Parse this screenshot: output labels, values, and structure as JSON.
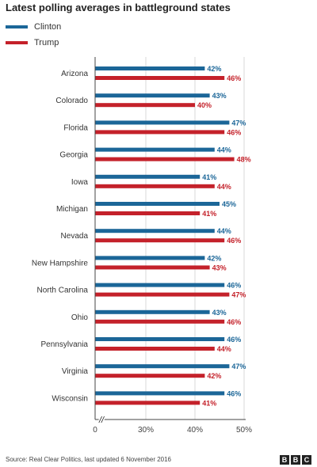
{
  "title": "Latest polling averages in battleground states",
  "colors": {
    "clinton": "#1b6698",
    "trump": "#c4212a",
    "axis": "#444444"
  },
  "source": "Source: Real Clear Politics, last updated 6 November 2016",
  "logo": [
    "B",
    "B",
    "C"
  ],
  "chart_data": {
    "type": "bar",
    "orientation": "horizontal",
    "categories": [
      "Arizona",
      "Colorado",
      "Florida",
      "Georgia",
      "Iowa",
      "Michigan",
      "Nevada",
      "New Hampshire",
      "North Carolina",
      "Ohio",
      "Pennsylvania",
      "Virginia",
      "Wisconsin"
    ],
    "series": [
      {
        "name": "Clinton",
        "values": [
          42,
          43,
          47,
          44,
          41,
          45,
          44,
          42,
          46,
          43,
          46,
          47,
          46
        ],
        "labels": [
          "42%",
          "43%",
          "47%",
          "44%",
          "41%",
          "45%",
          "44%",
          "42%",
          "46%",
          "43%",
          "46%",
          "47%",
          "46%"
        ]
      },
      {
        "name": "Trump",
        "values": [
          46,
          40,
          46,
          48,
          44,
          41,
          46,
          43,
          47,
          46,
          44,
          42,
          41
        ],
        "labels": [
          "46%",
          "40%",
          "46%",
          "48%",
          "44%",
          "41%",
          "46%",
          "43%",
          "47%",
          "46%",
          "44%",
          "42%",
          "41%"
        ]
      }
    ],
    "xticks": [
      0,
      30,
      40,
      50
    ],
    "xtick_labels": [
      "0",
      "30%",
      "40%",
      "50%"
    ],
    "xlim": [
      0,
      50
    ],
    "axis_break": "//",
    "grid": true,
    "legend": "top-left"
  }
}
